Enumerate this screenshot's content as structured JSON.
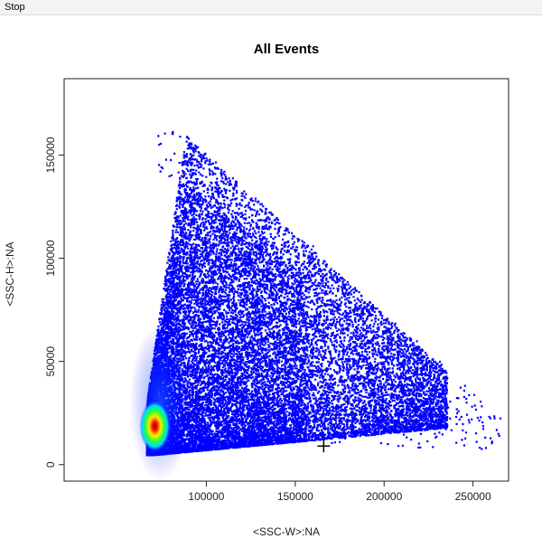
{
  "toolbar": {
    "stop_label": "Stop"
  },
  "chart_data": {
    "type": "scatter",
    "title": "All Events",
    "xlabel": "<SSC-W>:NA",
    "ylabel": "<SSC-H>:NA",
    "xlim": [
      20000,
      270000
    ],
    "ylim": [
      -8000,
      187000
    ],
    "xticks": [
      100000,
      150000,
      200000,
      250000
    ],
    "yticks": [
      0,
      50000,
      100000,
      150000
    ],
    "grid": false,
    "legend": "none",
    "color_scale": [
      "#0000ff",
      "#00e5ff",
      "#00ff55",
      "#ffff00",
      "#ff0000"
    ],
    "density_peak": {
      "x": 70000,
      "y": 16000
    },
    "cursor": {
      "x": 166000,
      "y": 9000
    }
  }
}
